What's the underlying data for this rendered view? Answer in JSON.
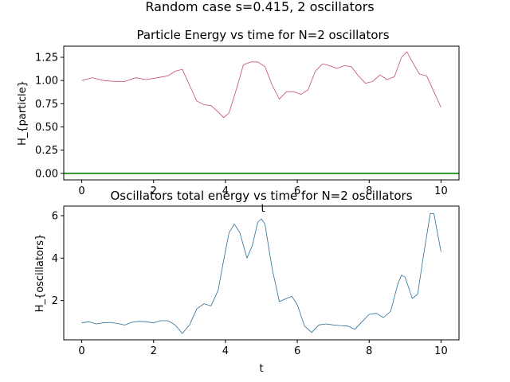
{
  "figure": {
    "suptitle": "Random case s=0.415, 2 oscillators"
  },
  "chart_data": [
    {
      "type": "line",
      "title": "Particle Energy vs time for N=2 oscillators",
      "xlabel": "t",
      "ylabel": "H_{particle}",
      "xlim": [
        -0.5,
        10.5
      ],
      "ylim": [
        -0.07,
        1.37
      ],
      "xticks": [
        "0",
        "2",
        "4",
        "6",
        "8",
        "10"
      ],
      "yticks": [
        "0.00",
        "0.25",
        "0.50",
        "0.75",
        "1.00",
        "1.25"
      ],
      "grid": false,
      "series": [
        {
          "color": "#c44e69",
          "x": [
            0,
            0.3,
            0.6,
            0.9,
            1.2,
            1.5,
            1.8,
            2.1,
            2.4,
            2.6,
            2.8,
            3.0,
            3.2,
            3.4,
            3.6,
            3.8,
            3.95,
            4.1,
            4.3,
            4.5,
            4.7,
            4.9,
            5.1,
            5.3,
            5.5,
            5.7,
            5.9,
            6.1,
            6.3,
            6.5,
            6.7,
            6.9,
            7.1,
            7.3,
            7.5,
            7.7,
            7.9,
            8.1,
            8.3,
            8.5,
            8.7,
            8.9,
            9.05,
            9.2,
            9.4,
            9.6,
            9.8,
            10.0
          ],
          "y": [
            1.0,
            1.03,
            1.0,
            0.99,
            0.99,
            1.03,
            1.01,
            1.03,
            1.05,
            1.1,
            1.12,
            0.95,
            0.78,
            0.74,
            0.73,
            0.66,
            0.6,
            0.65,
            0.9,
            1.17,
            1.2,
            1.2,
            1.15,
            0.95,
            0.8,
            0.88,
            0.88,
            0.85,
            0.9,
            1.1,
            1.18,
            1.16,
            1.13,
            1.16,
            1.15,
            1.05,
            0.97,
            0.99,
            1.06,
            1.01,
            1.04,
            1.25,
            1.31,
            1.2,
            1.07,
            1.05,
            0.88,
            0.71
          ]
        },
        {
          "color": "#1e8c1e",
          "x": [
            -0.5,
            10.5
          ],
          "y": [
            0,
            0
          ]
        }
      ]
    },
    {
      "type": "line",
      "title": "Oscillators total energy vs time for N=2 oscillators",
      "xlabel": "t",
      "ylabel": "H_{oscillators}",
      "xlim": [
        -0.5,
        10.5
      ],
      "ylim": [
        0.15,
        6.45
      ],
      "xticks": [
        "0",
        "2",
        "4",
        "6",
        "8",
        "10"
      ],
      "yticks": [
        "2",
        "4",
        "6"
      ],
      "grid": false,
      "series": [
        {
          "color": "#2e6d96",
          "x": [
            0,
            0.2,
            0.4,
            0.6,
            0.8,
            1.0,
            1.2,
            1.4,
            1.6,
            1.8,
            2.0,
            2.2,
            2.4,
            2.6,
            2.8,
            3.0,
            3.2,
            3.4,
            3.6,
            3.8,
            3.95,
            4.1,
            4.25,
            4.4,
            4.6,
            4.75,
            4.9,
            5.0,
            5.1,
            5.3,
            5.5,
            5.7,
            5.85,
            6.0,
            6.2,
            6.4,
            6.6,
            6.8,
            7.0,
            7.2,
            7.4,
            7.6,
            7.8,
            8.0,
            8.2,
            8.4,
            8.6,
            8.8,
            8.9,
            9.0,
            9.2,
            9.35,
            9.5,
            9.7,
            9.8,
            10.0
          ],
          "y": [
            0.95,
            1.0,
            0.9,
            0.95,
            0.97,
            0.92,
            0.85,
            0.98,
            1.02,
            1.0,
            0.95,
            1.05,
            1.05,
            0.85,
            0.45,
            0.85,
            1.6,
            1.85,
            1.75,
            2.5,
            3.9,
            5.2,
            5.6,
            5.2,
            4.0,
            4.6,
            5.7,
            5.85,
            5.6,
            3.5,
            1.95,
            2.1,
            2.2,
            1.8,
            0.8,
            0.5,
            0.85,
            0.9,
            0.85,
            0.82,
            0.8,
            0.65,
            1.0,
            1.35,
            1.4,
            1.2,
            1.5,
            2.8,
            3.2,
            3.1,
            2.1,
            2.3,
            4.0,
            6.1,
            6.1,
            4.3
          ]
        }
      ]
    }
  ]
}
